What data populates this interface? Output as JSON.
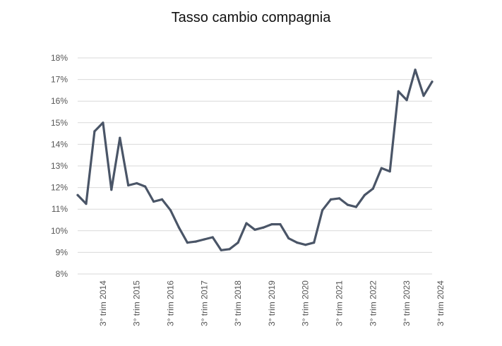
{
  "chart_data": {
    "type": "line",
    "title": "Tasso cambio compagnia",
    "xlabel": "",
    "ylabel": "",
    "y_tick_labels": [
      "8%",
      "9%",
      "10%",
      "11%",
      "12%",
      "13%",
      "14%",
      "15%",
      "16%",
      "17%",
      "18%"
    ],
    "y_ticks": [
      8,
      9,
      10,
      11,
      12,
      13,
      14,
      15,
      16,
      17,
      18
    ],
    "ylim": [
      8,
      18
    ],
    "x_tick_labels": [
      "3° trim 2014",
      "3° trim 2015",
      "3° trim 2016",
      "3° trim 2017",
      "3° trim 2018",
      "3° trim 2019",
      "3° trim 2020",
      "3° trim 2021",
      "3° trim 2022",
      "3° trim 2023",
      "3° trim 2024"
    ],
    "x_tick_index": [
      3,
      7,
      11,
      15,
      19,
      23,
      27,
      31,
      35,
      39,
      43
    ],
    "grid": true,
    "legend": "none",
    "series_color": "#4a5567",
    "series": [
      {
        "values": [
          11.65,
          11.25,
          14.6,
          15.0,
          11.9,
          14.3,
          12.1,
          12.2,
          12.05,
          11.35,
          11.45,
          10.95,
          10.15,
          9.45,
          9.5,
          9.6,
          9.7,
          9.1,
          9.15,
          9.45,
          10.35,
          10.05,
          10.15,
          10.3,
          10.3,
          9.65,
          9.45,
          9.35,
          9.45,
          10.95,
          11.45,
          11.5,
          11.2,
          11.1,
          11.65,
          11.95,
          12.9,
          12.75,
          16.45,
          16.05,
          17.45,
          16.25,
          16.9
        ]
      }
    ]
  }
}
